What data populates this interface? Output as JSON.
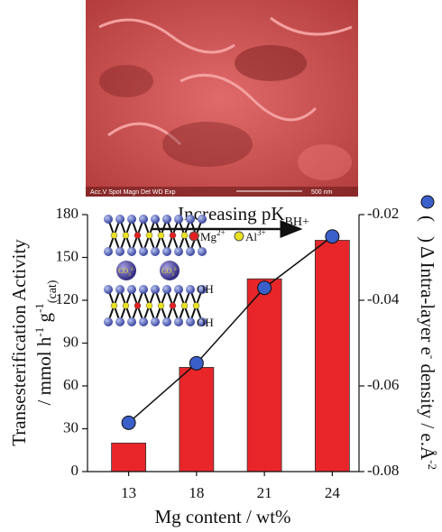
{
  "image": {
    "caption": "Acc.V  Spot Magn   Det  WD  Exp",
    "scale": "500 nm"
  },
  "chart_data": {
    "type": "bar",
    "x_label": "Mg content / wt%",
    "y_label": [
      "Transesterification Activity",
      "/ mmol h",
      "-1",
      " g",
      "-1",
      "(cat)"
    ],
    "y2_label": [
      "(",
      ")",
      " Δ Intra-layer e",
      "-",
      " density / e.Å",
      "-2"
    ],
    "annotation": [
      "Increasing pK",
      "BH+"
    ],
    "inset": {
      "mg": [
        "Mg",
        "2+"
      ],
      "al": [
        "Al",
        "3+"
      ],
      "carbonate": [
        "CO",
        "3",
        "2-"
      ],
      "oh": [
        "OH",
        "OH"
      ]
    },
    "categories": [
      "13",
      "18",
      "21",
      "24"
    ],
    "series": [
      {
        "color": "#e8262a",
        "values": [
          20,
          73,
          135,
          162
        ]
      },
      {
        "type": "line",
        "axis": "y2",
        "color": "#3a5fc8",
        "values": [
          -0.0686,
          -0.0547,
          -0.0371,
          -0.0251
        ]
      }
    ],
    "ylim": [
      0,
      180
    ],
    "yticks": [
      0,
      30,
      60,
      90,
      120,
      150,
      180
    ],
    "y2lim": [
      -0.08,
      -0.02
    ],
    "y2ticks": [
      -0.08,
      -0.06,
      -0.04,
      -0.02
    ]
  }
}
